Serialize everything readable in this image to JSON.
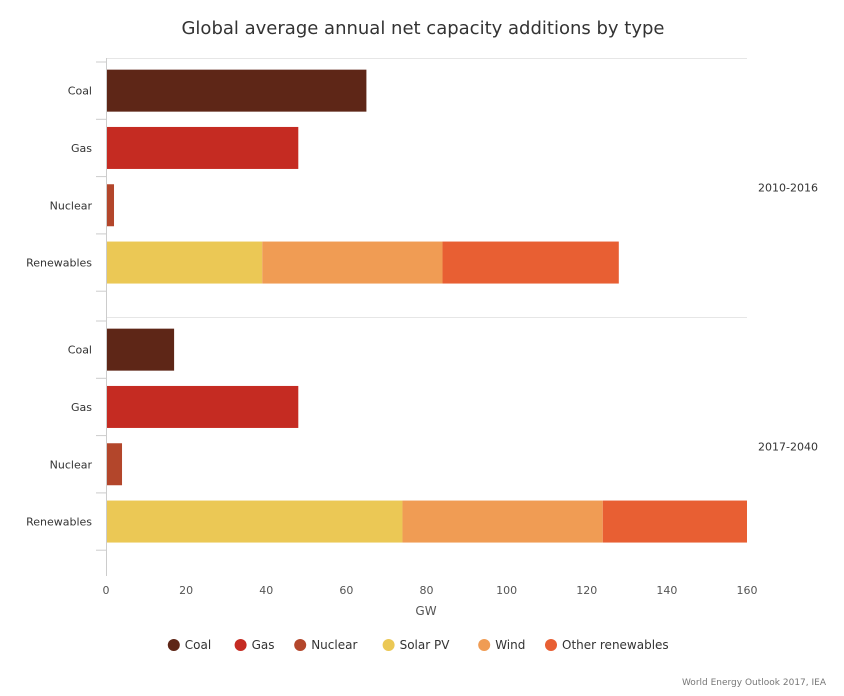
{
  "chart_data": {
    "type": "bar",
    "orientation": "horizontal",
    "stacked": true,
    "title": "Global average annual net capacity additions by type",
    "xlabel": "GW",
    "xlim": [
      0,
      160
    ],
    "x_ticks": [
      0,
      20,
      40,
      60,
      80,
      100,
      120,
      140,
      160
    ],
    "grid": false,
    "legend_position": "bottom",
    "groups": [
      {
        "name": "2010-2016",
        "categories": [
          {
            "label": "Coal",
            "segments": [
              {
                "series": "Coal",
                "value": 65
              }
            ]
          },
          {
            "label": "Gas",
            "segments": [
              {
                "series": "Gas",
                "value": 48
              }
            ]
          },
          {
            "label": "Nuclear",
            "segments": [
              {
                "series": "Nuclear",
                "value": 2
              }
            ]
          },
          {
            "label": "Renewables",
            "segments": [
              {
                "series": "Solar PV",
                "value": 39
              },
              {
                "series": "Wind",
                "value": 45
              },
              {
                "series": "Other renewables",
                "value": 44
              }
            ]
          }
        ]
      },
      {
        "name": "2017-2040",
        "categories": [
          {
            "label": "Coal",
            "segments": [
              {
                "series": "Coal",
                "value": 17
              }
            ]
          },
          {
            "label": "Gas",
            "segments": [
              {
                "series": "Gas",
                "value": 48
              }
            ]
          },
          {
            "label": "Nuclear",
            "segments": [
              {
                "series": "Nuclear",
                "value": 4
              }
            ]
          },
          {
            "label": "Renewables",
            "segments": [
              {
                "series": "Solar PV",
                "value": 74
              },
              {
                "series": "Wind",
                "value": 50
              },
              {
                "series": "Other renewables",
                "value": 36
              }
            ]
          }
        ]
      }
    ],
    "series": [
      {
        "name": "Coal",
        "color": "#5e2617"
      },
      {
        "name": "Gas",
        "color": "#c52b22"
      },
      {
        "name": "Nuclear",
        "color": "#b3462b"
      },
      {
        "name": "Solar PV",
        "color": "#ebc855"
      },
      {
        "name": "Wind",
        "color": "#f09c54"
      },
      {
        "name": "Other renewables",
        "color": "#e85f33"
      }
    ]
  },
  "source": "World Energy Outlook 2017, IEA"
}
